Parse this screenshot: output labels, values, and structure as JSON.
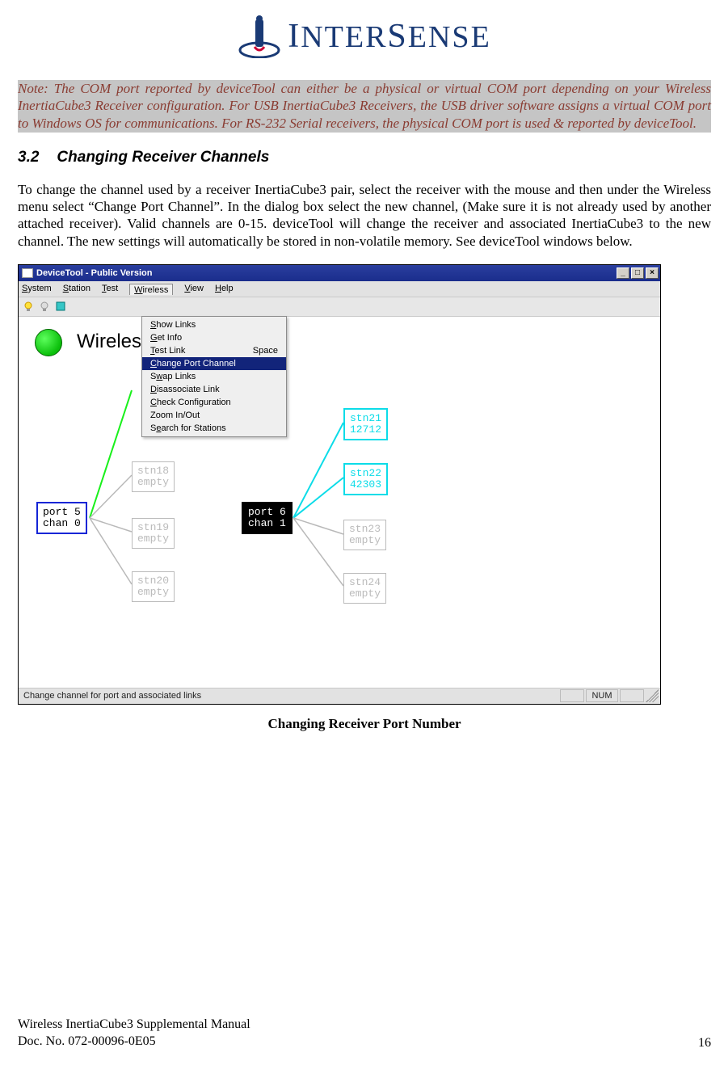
{
  "logo": {
    "brand": "INTERSENSE"
  },
  "note_text": "Note: The COM port reported by deviceTool can either be a physical or virtual COM port depending on your Wireless InertiaCube3 Receiver configuration.  For USB InertiaCube3 Receivers, the USB driver software assigns a virtual COM port to Windows OS for communications.  For RS-232 Serial receivers, the physical COM port is used & reported by deviceTool.",
  "section": {
    "number": "3.2",
    "title": "Changing Receiver Channels"
  },
  "body_para": "To change the channel used by a receiver InertiaCube3 pair, select the receiver with the mouse and then under the Wireless menu select “Change Port Channel”.  In the dialog box select the new channel, (Make sure it is not already used by another attached receiver).  Valid channels are 0-15.  deviceTool will change the receiver and associated InertiaCube3 to the new channel.  The new settings will automatically be stored in non-volatile memory.  See deviceTool windows below.",
  "caption": "Changing Receiver Port Number",
  "footer": {
    "line1": "Wireless InertiaCube3 Supplemental Manual",
    "line2": "Doc. No. 072-00096-0E05",
    "page": "16"
  },
  "window": {
    "title": "DeviceTool - Public Version",
    "menubar": [
      "System",
      "Station",
      "Test",
      "Wireless",
      "View",
      "Help"
    ],
    "menubar_underline_idx": [
      0,
      0,
      0,
      0,
      0,
      0
    ],
    "menubar_open_idx": 3,
    "dropdown": {
      "items": [
        {
          "label": "Show Links",
          "u": 0,
          "accel": ""
        },
        {
          "label": "Get Info",
          "u": 0,
          "accel": ""
        },
        {
          "label": "Test Link",
          "u": 0,
          "accel": "Space"
        },
        {
          "label": "Change Port Channel",
          "u": 0,
          "accel": ""
        },
        {
          "label": "Swap Links",
          "u": 1,
          "accel": ""
        },
        {
          "label": "Disassociate Link",
          "u": 0,
          "accel": ""
        },
        {
          "label": "Check Configuration",
          "u": 0,
          "accel": ""
        },
        {
          "label": "Zoom In/Out",
          "u": -1,
          "accel": ""
        },
        {
          "label": "Search for Stations",
          "u": 1,
          "accel": ""
        }
      ],
      "selected_idx": 3
    },
    "wireless_label": "Wireless",
    "port1": {
      "line1": "port 5",
      "line2": "chan 0"
    },
    "port2": {
      "line1": "port 6",
      "line2": "chan 1"
    },
    "left_nodes": [
      {
        "name": "stn18",
        "val": "empty"
      },
      {
        "name": "stn19",
        "val": "empty"
      },
      {
        "name": "stn20",
        "val": "empty"
      }
    ],
    "right_nodes": [
      {
        "name": "stn21",
        "val": "12712",
        "active": true
      },
      {
        "name": "stn22",
        "val": "42303",
        "active": true
      },
      {
        "name": "stn23",
        "val": "empty",
        "active": false
      },
      {
        "name": "stn24",
        "val": "empty",
        "active": false
      }
    ],
    "statusbar_text": "Change channel for port and associated links",
    "statusbar_indicator": "NUM",
    "colors": {
      "titlebar": "#1f2f8f",
      "menu_bg": "#efefef",
      "sel_bg": "#12247a",
      "green_line": "#19f01b",
      "gray_line": "#b9b9b9",
      "cyan_line": "#0cdce8",
      "port1_border": "#1425d6"
    }
  }
}
